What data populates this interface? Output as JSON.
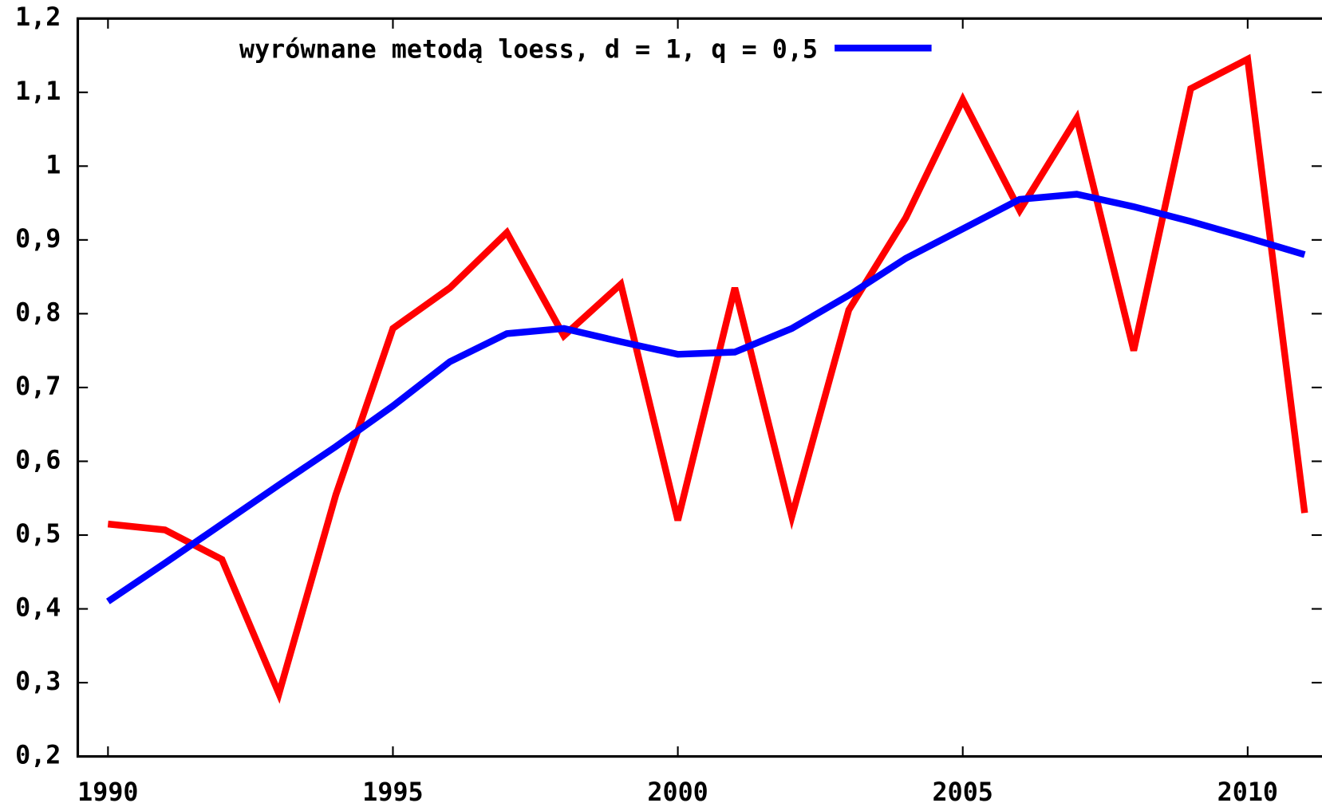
{
  "chart_data": {
    "type": "line",
    "x": [
      1990,
      1991,
      1992,
      1993,
      1994,
      1995,
      1996,
      1997,
      1998,
      1999,
      2000,
      2001,
      2002,
      2003,
      2004,
      2005,
      2006,
      2007,
      2008,
      2009,
      2010,
      2011
    ],
    "series": [
      {
        "color": "#ff0000",
        "values": [
          0.515,
          0.507,
          0.467,
          0.285,
          0.555,
          0.78,
          0.835,
          0.91,
          0.77,
          0.84,
          0.52,
          0.835,
          0.525,
          0.805,
          0.93,
          1.09,
          0.94,
          1.065,
          0.75,
          1.105,
          1.145,
          0.53
        ]
      },
      {
        "name": "wyrównane metodą loess, d = 1, q = 0,5",
        "color": "#0000ff",
        "values": [
          0.41,
          0.462,
          0.515,
          0.568,
          0.62,
          0.675,
          0.735,
          0.773,
          0.78,
          0.762,
          0.745,
          0.748,
          0.78,
          0.825,
          0.875,
          0.915,
          0.955,
          0.962,
          0.945,
          0.925,
          0.903,
          0.88
        ]
      }
    ],
    "xlim": [
      1989.47,
      2011.3
    ],
    "ylim": [
      0.2,
      1.2
    ],
    "xticks": [
      1990,
      1995,
      2000,
      2005,
      2010
    ],
    "yticks": [
      {
        "value": 0.2,
        "label": "0,2"
      },
      {
        "value": 0.3,
        "label": "0,3"
      },
      {
        "value": 0.4,
        "label": "0,4"
      },
      {
        "value": 0.5,
        "label": "0,5"
      },
      {
        "value": 0.6,
        "label": "0,6"
      },
      {
        "value": 0.7,
        "label": "0,7"
      },
      {
        "value": 0.8,
        "label": "0,8"
      },
      {
        "value": 0.9,
        "label": "0,9"
      },
      1,
      {
        "value": 1.1,
        "label": "1,1"
      },
      {
        "value": 1.2,
        "label": "1,2"
      }
    ],
    "legend": "top-left"
  }
}
